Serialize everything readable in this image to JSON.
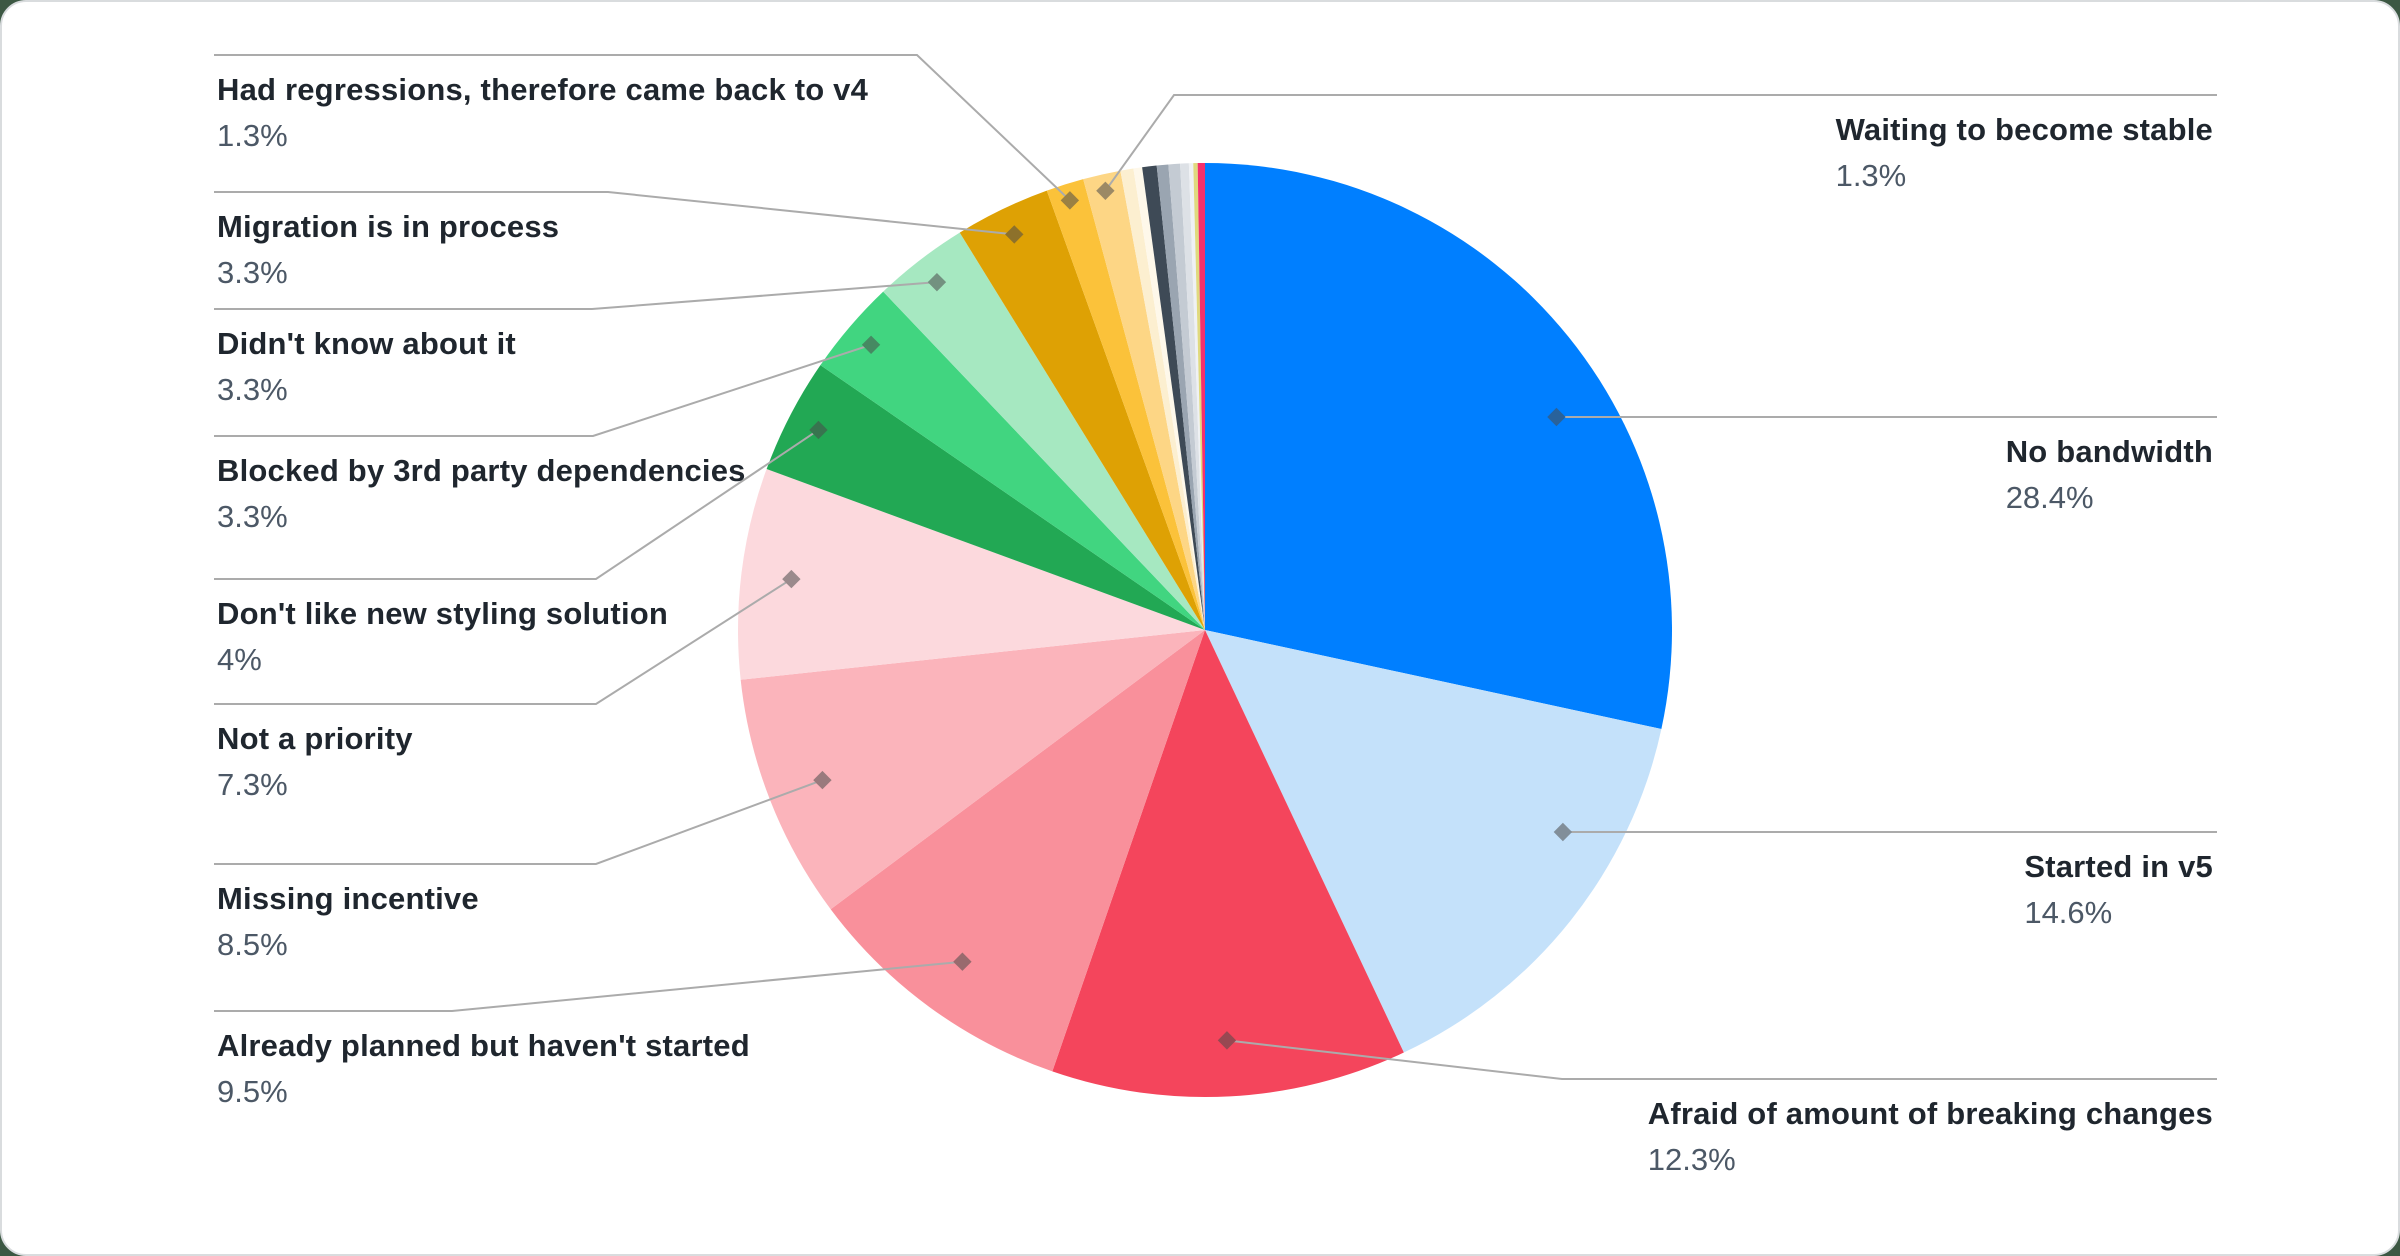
{
  "chart_data": {
    "type": "pie",
    "title": "",
    "legend": "none",
    "start_angle": "top",
    "direction": "clockwise",
    "labels_show_percent": true,
    "slices": [
      {
        "label": "No bandwidth",
        "value": 28.4,
        "display": "28.4%",
        "color": "#007FFF",
        "side": "right",
        "labeled": true
      },
      {
        "label": "Started in v5",
        "value": 14.6,
        "display": "14.6%",
        "color": "#C4E1FA",
        "side": "right",
        "labeled": true
      },
      {
        "label": "Afraid of amount of breaking changes",
        "value": 12.3,
        "display": "12.3%",
        "color": "#F4455C",
        "side": "right",
        "labeled": true
      },
      {
        "label": "Already planned but haven't started",
        "value": 9.5,
        "display": "9.5%",
        "color": "#F9909B",
        "side": "left",
        "labeled": true
      },
      {
        "label": "Missing incentive",
        "value": 8.5,
        "display": "8.5%",
        "color": "#FBB4BB",
        "side": "left",
        "labeled": true
      },
      {
        "label": "Not a priority",
        "value": 7.3,
        "display": "7.3%",
        "color": "#FCD9DD",
        "side": "left",
        "labeled": true
      },
      {
        "label": "Don't like new styling solution",
        "value": 4,
        "display": "4%",
        "color": "#22A854",
        "side": "left",
        "labeled": true
      },
      {
        "label": "Blocked by 3rd party dependencies",
        "value": 3.3,
        "display": "3.3%",
        "color": "#41D580",
        "side": "left",
        "labeled": true
      },
      {
        "label": "Didn't know about it",
        "value": 3.3,
        "display": "3.3%",
        "color": "#A6E8C1",
        "side": "left",
        "labeled": true
      },
      {
        "label": "Migration is in process",
        "value": 3.3,
        "display": "3.3%",
        "color": "#DEA104",
        "side": "left",
        "labeled": true
      },
      {
        "label": "Had regressions, therefore came back to v4",
        "value": 1.3,
        "display": "1.3%",
        "color": "#FBC23A",
        "side": "left",
        "labeled": true
      },
      {
        "label": "Waiting to become stable",
        "value": 1.3,
        "display": "1.3%",
        "color": "#FDD685",
        "side": "right",
        "labeled": true
      },
      {
        "label": "",
        "value": 0.45,
        "display": "",
        "color": "#FCEFD0",
        "side": "none",
        "labeled": false
      },
      {
        "label": "",
        "value": 0.3,
        "display": "",
        "color": "#FEF8EA",
        "side": "none",
        "labeled": false
      },
      {
        "label": "",
        "value": 0.5,
        "display": "",
        "color": "#3E4A56",
        "side": "none",
        "labeled": false
      },
      {
        "label": "",
        "value": 0.4,
        "display": "",
        "color": "#9AA5B1",
        "side": "none",
        "labeled": false
      },
      {
        "label": "",
        "value": 0.4,
        "display": "",
        "color": "#C4CBD3",
        "side": "none",
        "labeled": false
      },
      {
        "label": "",
        "value": 0.3,
        "display": "",
        "color": "#DDE1E6",
        "side": "none",
        "labeled": false
      },
      {
        "label": "",
        "value": 0.15,
        "display": "",
        "color": "#EFF1F4",
        "side": "none",
        "labeled": false
      },
      {
        "label": "",
        "value": 0.15,
        "display": "",
        "color": "#E0D97E",
        "side": "none",
        "labeled": false
      },
      {
        "label": "",
        "value": 0.25,
        "display": "",
        "color": "#F5306D",
        "side": "none",
        "labeled": false
      }
    ]
  },
  "style": {
    "page_background": "#3C5843",
    "card_background": "#FFFFFF",
    "card_border": "#D9DCDE",
    "leader_line_color": "#ABABAB",
    "label_title_color": "#1F262E",
    "label_percent_color": "#4C5866"
  }
}
